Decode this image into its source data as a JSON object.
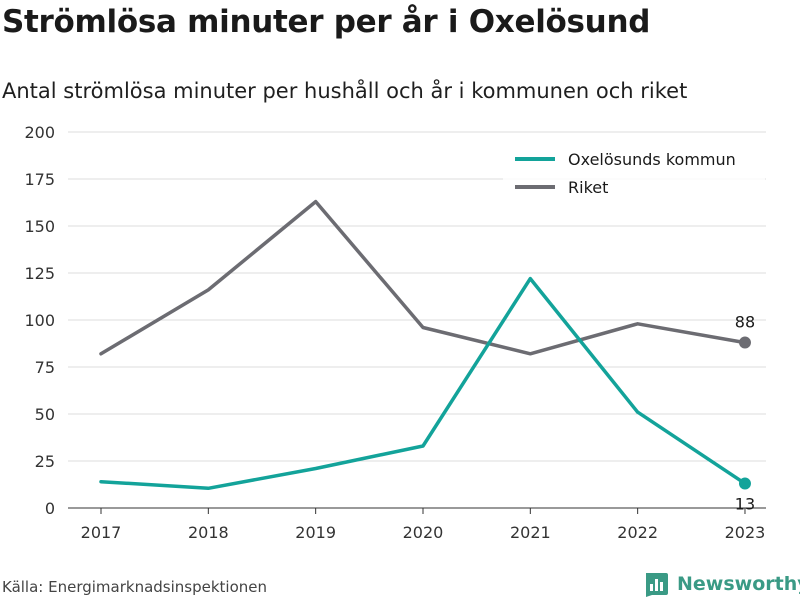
{
  "header": {
    "title": "Strömlösa minuter per år i Oxelösund",
    "subtitle": "Antal strömlösa minuter per hushåll och år i kommunen och riket"
  },
  "footer": {
    "source": "Källa: Energimarknadsinspektionen",
    "brand": "Newsworthy",
    "brand_icon": "bar-chart-logo-icon"
  },
  "chart_data": {
    "type": "line",
    "title": "Strömlösa minuter per år i Oxelösund",
    "subtitle": "Antal strömlösa minuter per hushåll och år i kommunen och riket",
    "x": [
      "2017",
      "2018",
      "2019",
      "2020",
      "2021",
      "2022",
      "2023"
    ],
    "ylim": [
      0,
      200
    ],
    "yticks": [
      0,
      25,
      50,
      75,
      100,
      125,
      150,
      175,
      200
    ],
    "grid": "horizontal",
    "legend_position": "top-right",
    "series": [
      {
        "name": "Oxelösunds kommun",
        "color": "#13a39a",
        "values": [
          14,
          10.5,
          21,
          33,
          122,
          51,
          13
        ],
        "end_label": "13"
      },
      {
        "name": "Riket",
        "color": "#6c6c72",
        "values": [
          82,
          116,
          163,
          96,
          82,
          98,
          88
        ],
        "end_label": "88"
      }
    ]
  }
}
